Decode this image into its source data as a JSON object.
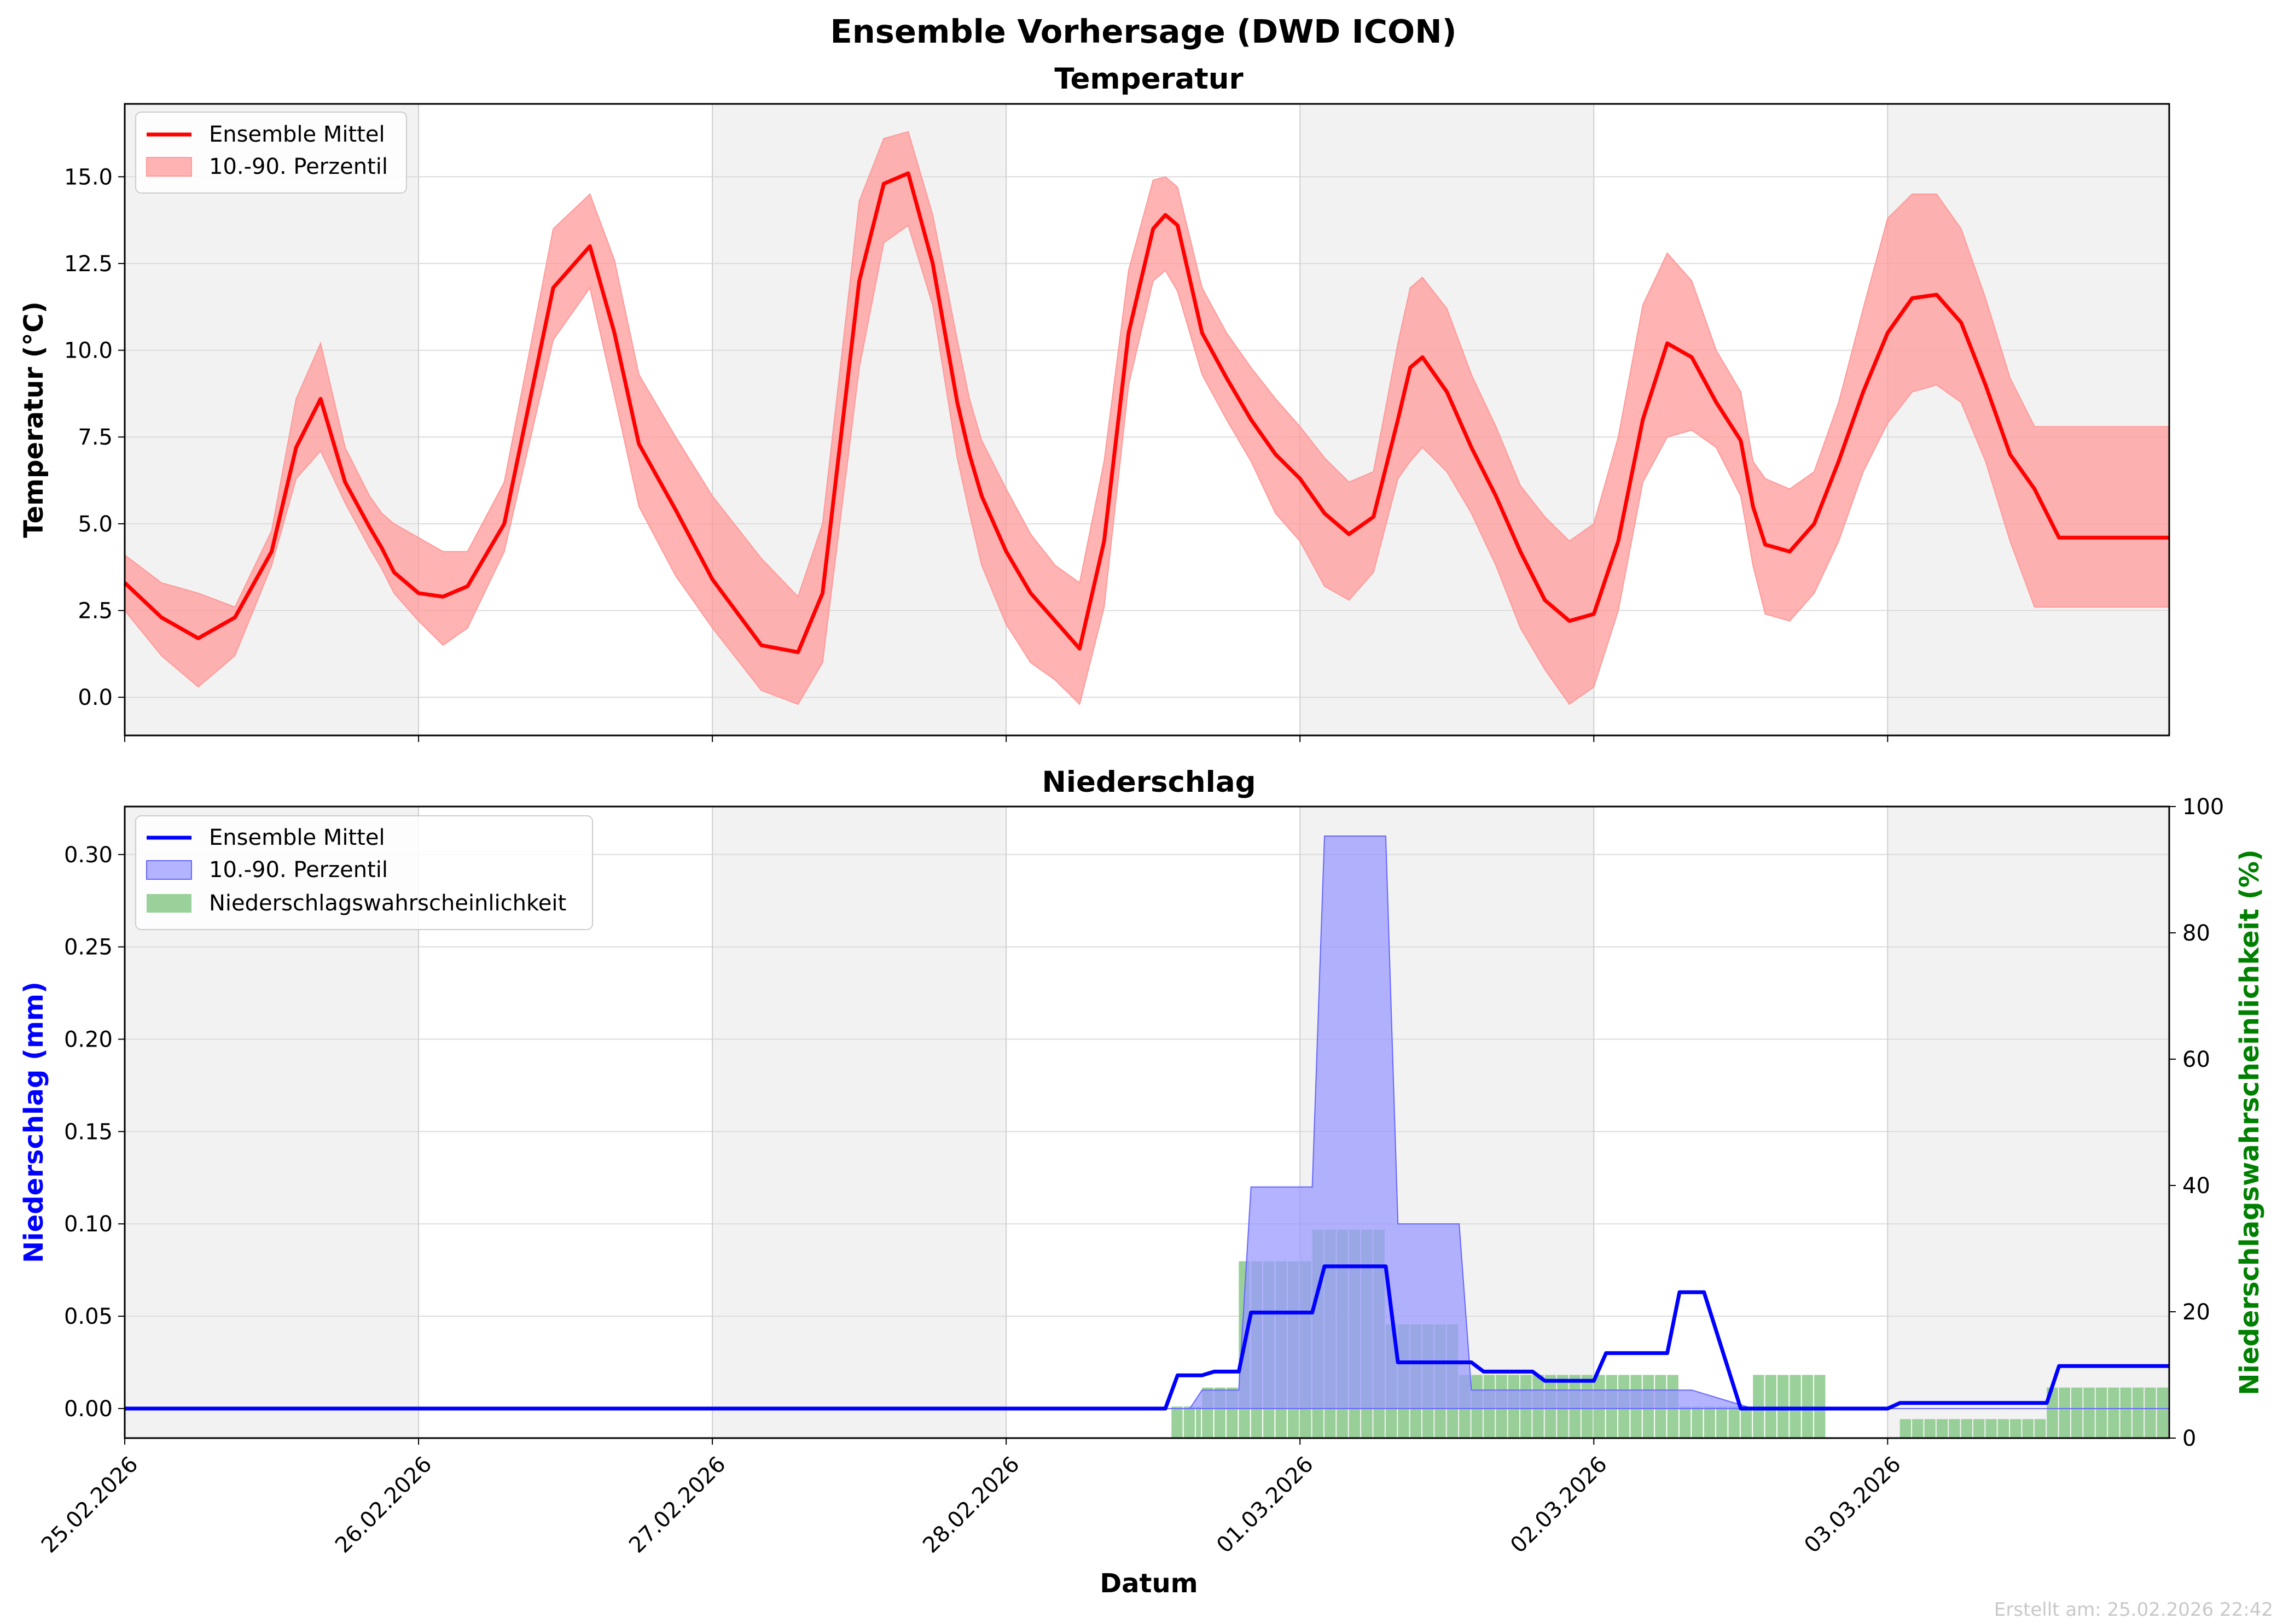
{
  "figure": {
    "title": "Ensemble Vorhersage (DWD ICON)",
    "xlabel": "Datum",
    "footer": "Erstellt am: 25.02.2026 22:42"
  },
  "colors": {
    "temp_line": "#ff0000",
    "temp_band": "#ff9999",
    "precip_line": "#0000ff",
    "precip_band": "#9999ff",
    "prob_bars": "#88c888",
    "prob_axis": "#008000",
    "night_shade": "#f2f2f2"
  },
  "chart_data": [
    {
      "type": "line",
      "title": "Temperatur",
      "ylabel": "Temperatur (°C)",
      "ylim": [
        -1.1,
        17.1
      ],
      "yticks": [
        0,
        2.5,
        5,
        7.5,
        10,
        12.5,
        15
      ],
      "ytick_labels": [
        "0.0",
        "2.5",
        "5.0",
        "7.5",
        "10.0",
        "12.5",
        "15.0"
      ],
      "x_unit": "hours since 25.02.2026 00:00",
      "xlim": [
        0,
        167
      ],
      "xtick_hours": [
        0,
        24,
        48,
        72,
        96,
        120,
        144
      ],
      "xtick_labels": [
        "25.02.2026",
        "26.02.2026",
        "27.02.2026",
        "28.02.2026",
        "01.03.2026",
        "02.03.2026",
        "03.03.2026"
      ],
      "grid": true,
      "legend_position": "upper-left",
      "legend": [
        "Ensemble Mittel",
        "10.-90. Perzentil"
      ],
      "series": [
        {
          "name": "Ensemble Mittel",
          "x": [
            0,
            3,
            6,
            9,
            12,
            14,
            16,
            18,
            20,
            21,
            22,
            24,
            26,
            28,
            31,
            35,
            38,
            40,
            42,
            45,
            48,
            52,
            55,
            57,
            60,
            62,
            64,
            66,
            68,
            69,
            70,
            72,
            74,
            76,
            78,
            80,
            82,
            84,
            85,
            86,
            88,
            90,
            92,
            94,
            96,
            98,
            100,
            102,
            104,
            105,
            106,
            108,
            110,
            112,
            114,
            116,
            118,
            120,
            122,
            124,
            126,
            128,
            130,
            132,
            133,
            134,
            136,
            138,
            140,
            142,
            144,
            146,
            148,
            150,
            152,
            154,
            156,
            158,
            160,
            162,
            164,
            167
          ],
          "y": [
            3.3,
            2.3,
            1.7,
            2.3,
            4.2,
            7.2,
            8.6,
            6.2,
            4.9,
            4.3,
            3.6,
            3.0,
            2.9,
            3.2,
            5.0,
            11.8,
            13.0,
            10.5,
            7.3,
            5.4,
            3.4,
            1.5,
            1.3,
            3.0,
            12.0,
            14.8,
            15.1,
            12.5,
            8.5,
            7.0,
            5.8,
            4.2,
            3.0,
            2.2,
            1.4,
            4.5,
            10.5,
            13.5,
            13.9,
            13.6,
            10.5,
            9.2,
            8.0,
            7.0,
            6.3,
            5.3,
            4.7,
            5.2,
            8.0,
            9.5,
            9.8,
            8.8,
            7.2,
            5.8,
            4.2,
            2.8,
            2.2,
            2.4,
            4.5,
            8.0,
            10.2,
            9.8,
            8.5,
            7.4,
            5.5,
            4.4,
            4.2,
            5.0,
            6.8,
            8.8,
            10.5,
            11.5,
            11.6,
            10.8,
            9.0,
            7.0,
            6.0,
            4.6,
            4.6,
            4.6,
            4.6,
            4.6
          ]
        },
        {
          "name": "10.-90. Perzentil",
          "x": [
            0,
            3,
            6,
            9,
            12,
            14,
            16,
            18,
            20,
            21,
            22,
            24,
            26,
            28,
            31,
            35,
            38,
            40,
            42,
            45,
            48,
            52,
            55,
            57,
            60,
            62,
            64,
            66,
            68,
            69,
            70,
            72,
            74,
            76,
            78,
            80,
            82,
            84,
            85,
            86,
            88,
            90,
            92,
            94,
            96,
            98,
            100,
            102,
            104,
            105,
            106,
            108,
            110,
            112,
            114,
            116,
            118,
            120,
            122,
            124,
            126,
            128,
            130,
            132,
            133,
            134,
            136,
            138,
            140,
            142,
            144,
            146,
            148,
            150,
            152,
            154,
            156,
            158,
            160,
            162,
            164,
            167
          ],
          "lower": [
            2.5,
            1.2,
            0.3,
            1.2,
            3.8,
            6.3,
            7.1,
            5.6,
            4.3,
            3.7,
            3.0,
            2.2,
            1.5,
            2.0,
            4.2,
            10.3,
            11.8,
            8.7,
            5.5,
            3.5,
            2.0,
            0.2,
            -0.2,
            1.0,
            9.5,
            13.1,
            13.6,
            11.3,
            6.9,
            5.3,
            3.8,
            2.1,
            1.0,
            0.5,
            -0.2,
            2.6,
            9.0,
            12.0,
            12.3,
            11.7,
            9.3,
            8.0,
            6.8,
            5.3,
            4.5,
            3.2,
            2.8,
            3.6,
            6.3,
            6.8,
            7.2,
            6.5,
            5.3,
            3.8,
            2.0,
            0.8,
            -0.2,
            0.3,
            2.5,
            6.2,
            7.5,
            7.7,
            7.2,
            5.8,
            3.8,
            2.4,
            2.2,
            3.0,
            4.5,
            6.5,
            7.9,
            8.8,
            9.0,
            8.5,
            6.8,
            4.5,
            2.6,
            2.6,
            2.6,
            2.6,
            2.6,
            2.6
          ],
          "upper": [
            4.1,
            3.3,
            3.0,
            2.6,
            4.8,
            8.6,
            10.2,
            7.2,
            5.8,
            5.3,
            5.0,
            4.6,
            4.2,
            4.2,
            6.2,
            13.5,
            14.5,
            12.6,
            9.3,
            7.5,
            5.8,
            4.0,
            2.9,
            5.0,
            14.3,
            16.1,
            16.3,
            13.9,
            10.3,
            8.6,
            7.4,
            6.0,
            4.7,
            3.8,
            3.3,
            6.8,
            12.3,
            14.9,
            15.0,
            14.7,
            11.8,
            10.5,
            9.5,
            8.6,
            7.8,
            6.9,
            6.2,
            6.5,
            10.2,
            11.8,
            12.1,
            11.2,
            9.3,
            7.8,
            6.1,
            5.2,
            4.5,
            5.0,
            7.5,
            11.3,
            12.8,
            12.0,
            10.0,
            8.8,
            6.8,
            6.3,
            6.0,
            6.5,
            8.5,
            11.2,
            13.8,
            14.5,
            14.5,
            13.5,
            11.5,
            9.2,
            7.8,
            7.8,
            7.8,
            7.8,
            7.8,
            7.8
          ]
        }
      ]
    },
    {
      "type": "line",
      "title": "Niederschlag",
      "ylabel": "Niederschlag (mm)",
      "y2label": "Niederschlagswahrscheinlichkeit (%)",
      "ylim": [
        -0.016,
        0.326
      ],
      "y2lim": [
        0,
        100
      ],
      "yticks": [
        0,
        0.05,
        0.1,
        0.15,
        0.2,
        0.25,
        0.3
      ],
      "ytick_labels": [
        "0.00",
        "0.05",
        "0.10",
        "0.15",
        "0.20",
        "0.25",
        "0.30"
      ],
      "y2ticks": [
        0,
        20,
        40,
        60,
        80,
        100
      ],
      "y2tick_labels": [
        "0",
        "20",
        "40",
        "60",
        "80",
        "100"
      ],
      "x_unit": "hours since 25.02.2026 00:00",
      "xlim": [
        0,
        167
      ],
      "xtick_hours": [
        0,
        24,
        48,
        72,
        96,
        120,
        144
      ],
      "xtick_labels": [
        "25.02.2026",
        "26.02.2026",
        "27.02.2026",
        "28.02.2026",
        "01.03.2026",
        "02.03.2026",
        "03.03.2026"
      ],
      "grid": true,
      "legend_position": "upper-left",
      "legend": [
        "Ensemble Mittel",
        "10.-90. Perzentil",
        "Niederschlagswahrscheinlichkeit"
      ],
      "series": [
        {
          "name": "Ensemble Mittel",
          "x": [
            0,
            85,
            86,
            88,
            89,
            91,
            92,
            97,
            98,
            103,
            104,
            110,
            111,
            115,
            116,
            120,
            121,
            126,
            127,
            129,
            132,
            144,
            145,
            157,
            158,
            167
          ],
          "y": [
            0,
            0,
            0.018,
            0.018,
            0.02,
            0.02,
            0.052,
            0.052,
            0.077,
            0.077,
            0.025,
            0.025,
            0.02,
            0.02,
            0.015,
            0.015,
            0.03,
            0.03,
            0.063,
            0.063,
            0,
            0,
            0.003,
            0.003,
            0.023,
            0.023
          ]
        },
        {
          "name": "10.-90. Perzentil",
          "x": [
            0,
            87,
            88,
            91,
            92,
            97,
            98,
            103,
            104,
            109,
            110,
            127,
            128,
            133,
            134,
            167
          ],
          "lower": [
            0,
            0,
            0,
            0,
            0,
            0,
            0,
            0,
            0,
            0,
            0,
            0,
            0,
            0,
            0,
            0
          ],
          "upper": [
            0,
            0,
            0.01,
            0.01,
            0.12,
            0.12,
            0.31,
            0.31,
            0.1,
            0.1,
            0.01,
            0.01,
            0.01,
            0,
            0,
            0
          ]
        },
        {
          "name": "Niederschlagswahrscheinlichkeit",
          "axis": "y2",
          "type": "bar",
          "segments": [
            [
              85.5,
              88,
              5
            ],
            [
              88,
              91,
              8
            ],
            [
              91,
              97,
              28
            ],
            [
              97,
              103,
              33
            ],
            [
              103,
              109,
              18
            ],
            [
              109,
              115,
              10
            ],
            [
              115,
              127,
              10
            ],
            [
              127,
              133,
              5
            ],
            [
              133,
              139,
              10
            ],
            [
              145,
              157,
              3
            ],
            [
              157,
              167,
              8
            ]
          ]
        }
      ]
    }
  ]
}
